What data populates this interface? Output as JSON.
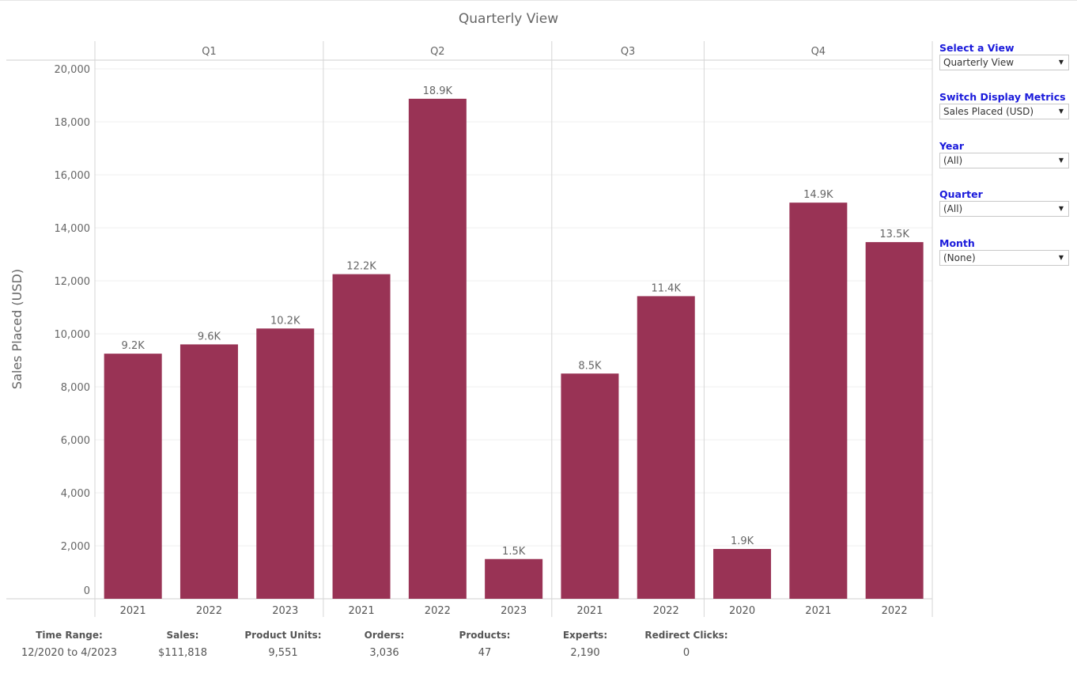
{
  "title": "Quarterly View",
  "chart_data": {
    "type": "bar",
    "title": "Quarterly View",
    "ylabel": "Sales Placed (USD)",
    "ylim": [
      0,
      20000
    ],
    "yticks": [
      0,
      2000,
      4000,
      6000,
      8000,
      10000,
      12000,
      14000,
      16000,
      18000,
      20000
    ],
    "ytick_labels": [
      "0",
      "2,000",
      "4,000",
      "6,000",
      "8,000",
      "10,000",
      "12,000",
      "14,000",
      "16,000",
      "18,000",
      "20,000"
    ],
    "grid": true,
    "bar_color": "#993355",
    "groups": [
      {
        "label": "Q1",
        "categories": [
          "2021",
          "2022",
          "2023"
        ],
        "values": [
          9250,
          9600,
          10200
        ],
        "labels": [
          "9.2K",
          "9.6K",
          "10.2K"
        ]
      },
      {
        "label": "Q2",
        "categories": [
          "2021",
          "2022",
          "2023"
        ],
        "values": [
          12250,
          18870,
          1500
        ],
        "labels": [
          "12.2K",
          "18.9K",
          "1.5K"
        ]
      },
      {
        "label": "Q3",
        "categories": [
          "2021",
          "2022"
        ],
        "values": [
          8500,
          11420
        ],
        "labels": [
          "8.5K",
          "11.4K"
        ]
      },
      {
        "label": "Q4",
        "categories": [
          "2020",
          "2021",
          "2022"
        ],
        "values": [
          1880,
          14950,
          13460
        ],
        "labels": [
          "1.9K",
          "14.9K",
          "13.5K"
        ]
      }
    ]
  },
  "filters": [
    {
      "label": "Select a View",
      "value": "Quarterly View"
    },
    {
      "label": "Switch Display Metrics",
      "value": "Sales Placed (USD)"
    },
    {
      "label": "Year",
      "value": "(All)"
    },
    {
      "label": "Quarter",
      "value": "(All)"
    },
    {
      "label": "Month",
      "value": "(None)"
    }
  ],
  "summary": [
    {
      "label": "Time Range:",
      "value": "12/2020 to 4/2023"
    },
    {
      "label": "Sales:",
      "value": "$111,818"
    },
    {
      "label": "Product Units:",
      "value": "9,551"
    },
    {
      "label": "Orders:",
      "value": "3,036"
    },
    {
      "label": "Products:",
      "value": "47"
    },
    {
      "label": "Experts:",
      "value": "2,190"
    },
    {
      "label": "Redirect Clicks:",
      "value": "0"
    }
  ]
}
